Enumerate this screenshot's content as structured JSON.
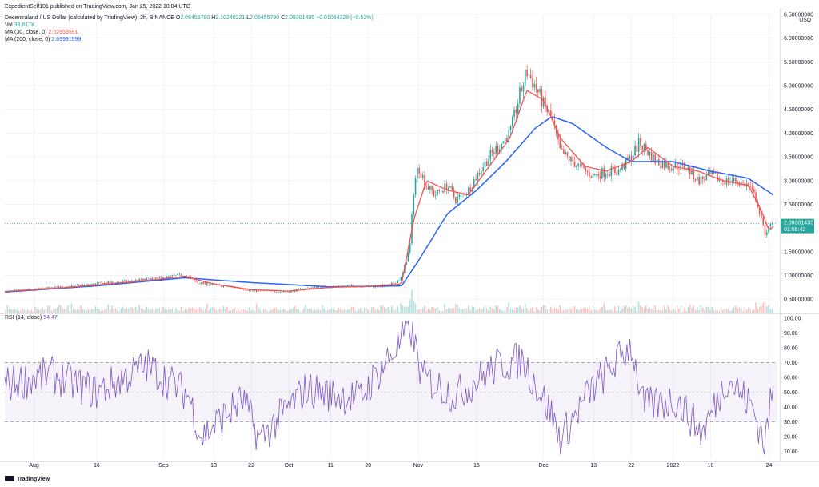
{
  "publisher_line": "ExpedientSelf101 published on TradingView.com, Jan 25, 2022 10:04 UTC",
  "footer": {
    "brand": "TradingView"
  },
  "legend": {
    "symbol": "Decentraland / US Dollar (calculated by TradingView), 2h, BINANCE",
    "ohlc": {
      "o_label": "O",
      "o": "2.08455790",
      "h_label": "H",
      "h": "2.10240221",
      "l_label": "L",
      "l": "2.08455790",
      "c_label": "C",
      "c": "2.09301495",
      "change": "+0.01084328 (+0.52%)"
    },
    "vol_label": "Vol",
    "vol": "38.817K",
    "ma30_label": "MA (30, close, 0)",
    "ma30": "2.02953591",
    "ma200_label": "MA (200, close, 0)",
    "ma200": "2.69991999",
    "rsi_label": "RSI (14, close)",
    "rsi": "54.47"
  },
  "price_badge": {
    "value": "2.09301495",
    "countdown": "01:55:42"
  },
  "colors": {
    "up": "#26a69a",
    "down": "#ef5350",
    "ma30": "#ef5350",
    "ma200": "#2962ff",
    "rsi": "#7e57c2",
    "rsi_band": "#7e57c2",
    "grid": "#f0f3fa",
    "text": "#131722"
  },
  "chart_data": [
    {
      "type": "line",
      "panel": "price",
      "currency_label": "USD",
      "y_scale": "linear",
      "ylim": [
        0.2,
        6.5
      ],
      "y_ticks": [
        "0.50000000",
        "1.00000000",
        "1.50000000",
        "2.00000000",
        "2.50000000",
        "3.00000000",
        "3.50000000",
        "4.00000000",
        "4.50000000",
        "5.00000000",
        "5.50000000",
        "6.00000000",
        "6.50000000"
      ],
      "x_tick_labels": [
        "Aug",
        "16",
        "Sep",
        "13",
        "22",
        "Oct",
        "11",
        "20",
        "Nov",
        "15",
        "Dec",
        "13",
        "22",
        "2022",
        "10",
        "24"
      ],
      "x_tick_dates": [
        "2021-08-01",
        "2021-08-16",
        "2021-09-01",
        "2021-09-13",
        "2021-09-22",
        "2021-10-01",
        "2021-10-11",
        "2021-10-20",
        "2021-11-01",
        "2021-11-15",
        "2021-12-01",
        "2021-12-13",
        "2021-12-22",
        "2022-01-01",
        "2022-01-10",
        "2022-01-24"
      ],
      "x_range": [
        "2021-07-25",
        "2022-01-26"
      ],
      "grid": true,
      "current_price": 2.09301495,
      "series": [
        {
          "name": "Price",
          "kind": "price",
          "x": [
            "2021-07-25",
            "2021-08-01",
            "2021-08-08",
            "2021-08-16",
            "2021-08-24",
            "2021-09-01",
            "2021-09-06",
            "2021-09-09",
            "2021-09-13",
            "2021-09-18",
            "2021-09-22",
            "2021-09-26",
            "2021-10-01",
            "2021-10-05",
            "2021-10-11",
            "2021-10-16",
            "2021-10-20",
            "2021-10-25",
            "2021-10-28",
            "2021-10-30",
            "2021-10-31",
            "2021-11-01",
            "2021-11-03",
            "2021-11-05",
            "2021-11-08",
            "2021-11-10",
            "2021-11-13",
            "2021-11-15",
            "2021-11-18",
            "2021-11-21",
            "2021-11-23",
            "2021-11-25",
            "2021-11-27",
            "2021-11-29",
            "2021-12-01",
            "2021-12-03",
            "2021-12-05",
            "2021-12-08",
            "2021-12-11",
            "2021-12-13",
            "2021-12-16",
            "2021-12-19",
            "2021-12-22",
            "2021-12-24",
            "2021-12-26",
            "2021-12-28",
            "2022-01-01",
            "2022-01-04",
            "2022-01-07",
            "2022-01-10",
            "2022-01-13",
            "2022-01-16",
            "2022-01-19",
            "2022-01-21",
            "2022-01-22",
            "2022-01-23",
            "2022-01-24",
            "2022-01-25"
          ],
          "y": [
            0.66,
            0.7,
            0.76,
            0.82,
            0.88,
            0.95,
            1.02,
            0.85,
            0.8,
            0.75,
            0.68,
            0.67,
            0.66,
            0.73,
            0.76,
            0.78,
            0.77,
            0.78,
            0.95,
            1.6,
            2.9,
            3.3,
            2.9,
            2.7,
            2.9,
            2.6,
            2.8,
            3.1,
            3.5,
            3.8,
            4.0,
            4.7,
            5.3,
            5.0,
            4.6,
            4.3,
            3.6,
            3.4,
            3.2,
            3.1,
            3.2,
            3.2,
            3.5,
            3.8,
            3.6,
            3.4,
            3.3,
            3.3,
            3.0,
            3.1,
            3.0,
            3.0,
            2.9,
            2.6,
            2.2,
            1.9,
            2.0,
            2.09
          ]
        },
        {
          "name": "MA (30, close, 0)",
          "kind": "ma30",
          "x": [
            "2021-07-25",
            "2021-08-08",
            "2021-08-24",
            "2021-09-06",
            "2021-09-13",
            "2021-09-22",
            "2021-10-01",
            "2021-10-11",
            "2021-10-20",
            "2021-10-28",
            "2021-10-31",
            "2021-11-03",
            "2021-11-08",
            "2021-11-13",
            "2021-11-18",
            "2021-11-23",
            "2021-11-27",
            "2021-12-01",
            "2021-12-05",
            "2021-12-11",
            "2021-12-16",
            "2021-12-22",
            "2021-12-26",
            "2022-01-01",
            "2022-01-07",
            "2022-01-13",
            "2022-01-19",
            "2022-01-22",
            "2022-01-24",
            "2022-01-25"
          ],
          "y": [
            0.66,
            0.74,
            0.86,
            0.98,
            0.82,
            0.7,
            0.67,
            0.75,
            0.77,
            0.82,
            2.2,
            3.0,
            2.8,
            2.7,
            3.3,
            3.9,
            4.9,
            4.7,
            3.9,
            3.3,
            3.2,
            3.4,
            3.7,
            3.3,
            3.2,
            3.0,
            2.9,
            2.4,
            1.95,
            2.03
          ]
        },
        {
          "name": "MA (200, close, 0)",
          "kind": "ma200",
          "x": [
            "2021-07-25",
            "2021-08-16",
            "2021-09-06",
            "2021-09-22",
            "2021-10-11",
            "2021-10-28",
            "2021-11-01",
            "2021-11-08",
            "2021-11-15",
            "2021-11-22",
            "2021-11-29",
            "2021-12-03",
            "2021-12-08",
            "2021-12-16",
            "2021-12-22",
            "2022-01-01",
            "2022-01-10",
            "2022-01-19",
            "2022-01-25"
          ],
          "y": [
            0.65,
            0.78,
            0.95,
            0.85,
            0.76,
            0.78,
            1.3,
            2.3,
            2.8,
            3.4,
            4.1,
            4.35,
            4.2,
            3.7,
            3.4,
            3.4,
            3.2,
            3.05,
            2.7
          ]
        }
      ]
    },
    {
      "type": "line",
      "panel": "rsi",
      "ylim": [
        5,
        100
      ],
      "y_ticks": [
        "10.00",
        "20.00",
        "30.00",
        "40.00",
        "50.00",
        "60.00",
        "70.00",
        "80.00",
        "90.00",
        "100.00"
      ],
      "band": [
        30,
        70
      ],
      "midline": 50,
      "series": [
        {
          "name": "RSI (14, close)",
          "x": [
            "2021-07-25",
            "2021-08-05",
            "2021-08-16",
            "2021-08-28",
            "2021-09-07",
            "2021-09-10",
            "2021-09-20",
            "2021-09-24",
            "2021-10-05",
            "2021-10-18",
            "2021-10-28",
            "2021-10-30",
            "2021-11-02",
            "2021-11-10",
            "2021-11-20",
            "2021-11-26",
            "2021-12-03",
            "2021-12-05",
            "2021-12-12",
            "2021-12-22",
            "2021-12-25",
            "2022-01-02",
            "2022-01-08",
            "2022-01-14",
            "2022-01-20",
            "2022-01-23",
            "2022-01-25"
          ],
          "y": [
            55,
            62,
            50,
            68,
            48,
            20,
            45,
            18,
            52,
            46,
            85,
            95,
            60,
            48,
            68,
            72,
            35,
            18,
            50,
            82,
            40,
            45,
            22,
            60,
            40,
            15,
            54.47
          ]
        }
      ]
    }
  ]
}
